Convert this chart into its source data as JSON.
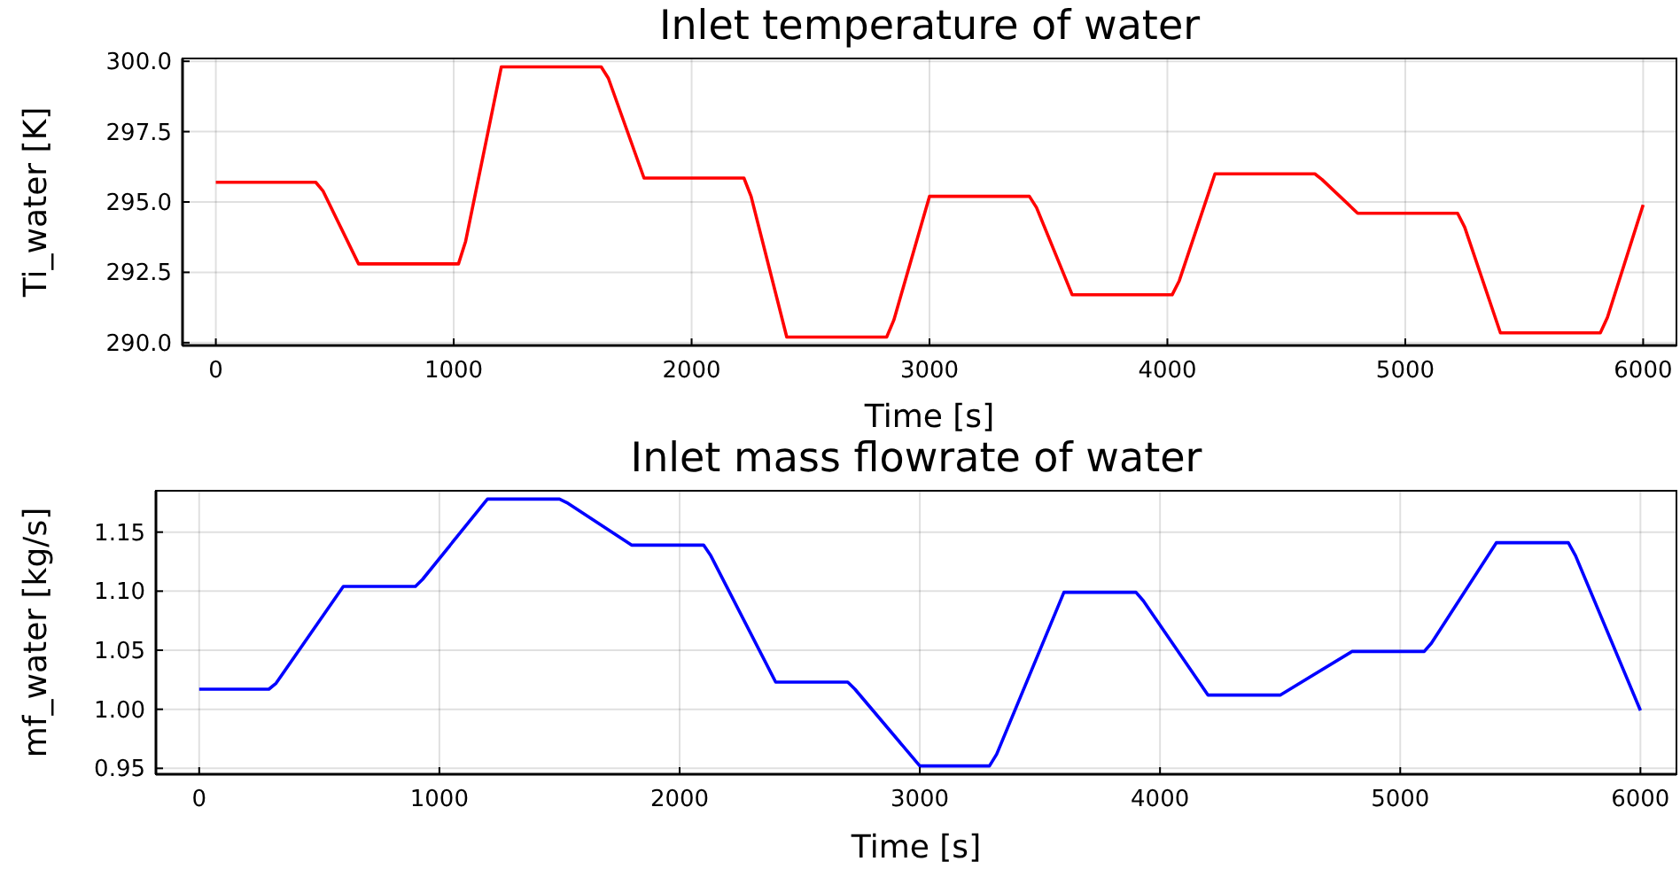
{
  "chart_data": [
    {
      "type": "line",
      "title": "Inlet temperature of water",
      "xlabel": "Time [s]",
      "ylabel": "Ti_water [K]",
      "xlim": [
        -140,
        6140
      ],
      "xticks": [
        0,
        1000,
        2000,
        3000,
        4000,
        5000,
        6000
      ],
      "ylim": [
        289.9,
        300.1
      ],
      "yticks": [
        {
          "value": 290,
          "label": "290.0"
        },
        {
          "value": 292.5,
          "label": "292.5"
        },
        {
          "value": 295,
          "label": "295.0"
        },
        {
          "value": 297.5,
          "label": "297.5"
        },
        {
          "value": 300,
          "label": "300.0"
        }
      ],
      "grid": true,
      "x": [
        0,
        420,
        450,
        600,
        1020,
        1050,
        1200,
        1620,
        1650,
        1800,
        2220,
        2250,
        2400,
        2820,
        2850,
        3000,
        3420,
        3450,
        3600,
        4020,
        4050,
        4200,
        4620,
        4650,
        4800,
        5220,
        5250,
        5400,
        5820,
        5850,
        6000
      ],
      "series": [
        {
          "color": "#ff0000",
          "values": [
            295.7,
            295.7,
            295.4,
            292.8,
            292.8,
            293.6,
            299.8,
            299.8,
            299.4,
            295.85,
            295.85,
            295.2,
            290.2,
            290.2,
            290.8,
            295.2,
            295.2,
            294.8,
            291.7,
            291.7,
            292.2,
            296.0,
            296.0,
            295.8,
            294.6,
            294.6,
            294.1,
            290.35,
            290.35,
            290.9,
            294.9
          ]
        }
      ]
    },
    {
      "type": "line",
      "title": "Inlet mass flowrate of water",
      "xlabel": "Time [s]",
      "ylabel": "mf_water [kg/s]",
      "xlim": [
        -180,
        6150
      ],
      "xticks": [
        0,
        1000,
        2000,
        3000,
        4000,
        5000,
        6000
      ],
      "ylim": [
        0.945,
        1.185
      ],
      "yticks": [
        {
          "value": 0.95,
          "label": "0.95"
        },
        {
          "value": 1.0,
          "label": "1.00"
        },
        {
          "value": 1.05,
          "label": "1.05"
        },
        {
          "value": 1.1,
          "label": "1.10"
        },
        {
          "value": 1.15,
          "label": "1.15"
        }
      ],
      "grid": true,
      "x": [
        0,
        290,
        320,
        600,
        900,
        930,
        1200,
        1500,
        1530,
        1800,
        2100,
        2130,
        2400,
        2700,
        2730,
        3000,
        3290,
        3320,
        3600,
        3900,
        3930,
        4200,
        4500,
        4800,
        5100,
        5130,
        5400,
        5700,
        5730,
        6000
      ],
      "series": [
        {
          "color": "#0000ff",
          "values": [
            1.017,
            1.017,
            1.022,
            1.104,
            1.104,
            1.11,
            1.178,
            1.178,
            1.175,
            1.139,
            1.139,
            1.13,
            1.023,
            1.023,
            1.017,
            0.952,
            0.952,
            0.962,
            1.099,
            1.099,
            1.092,
            1.012,
            1.012,
            1.049,
            1.049,
            1.056,
            1.141,
            1.141,
            1.13,
            0.999
          ]
        }
      ]
    }
  ]
}
